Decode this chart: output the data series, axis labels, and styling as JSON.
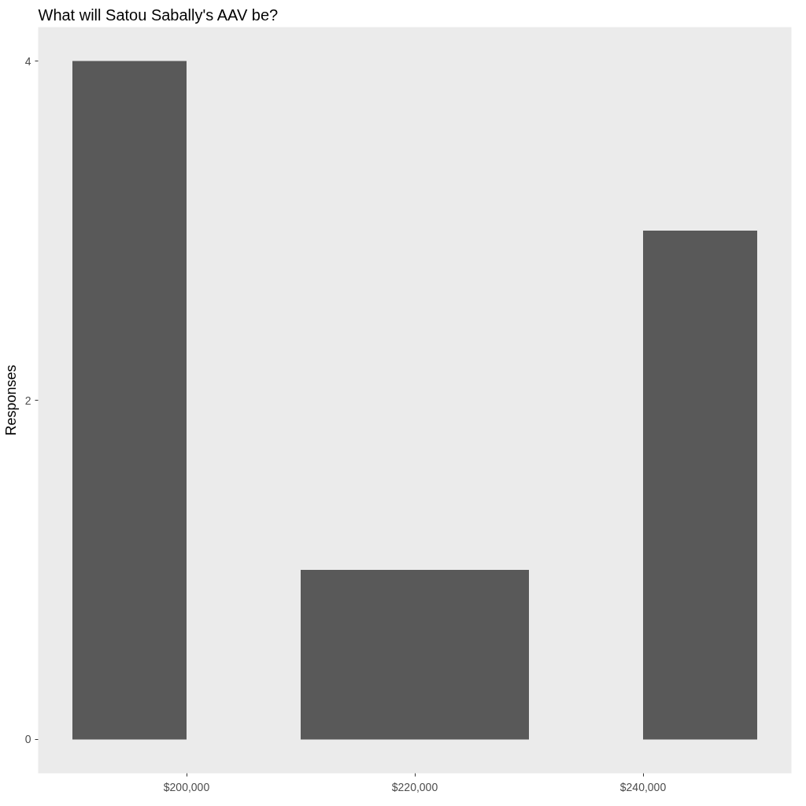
{
  "chart_data": {
    "type": "histogram",
    "title": "What will Satou Sabally's AAV be?",
    "ylabel": "Responses",
    "bins": [
      190000,
      200000,
      210000,
      230000,
      240000,
      250000
    ],
    "values": [
      4,
      0,
      1,
      0,
      3
    ],
    "color": "#595959",
    "xlim": [
      187000,
      253000
    ],
    "ylim": [
      -0.2,
      4.2
    ],
    "xticks": [
      {
        "value": 200000,
        "label": "$200,000"
      },
      {
        "value": 220000,
        "label": "$220,000"
      },
      {
        "value": 240000,
        "label": "$240,000"
      }
    ],
    "yticks": [
      0,
      2,
      4
    ],
    "grid": false
  }
}
